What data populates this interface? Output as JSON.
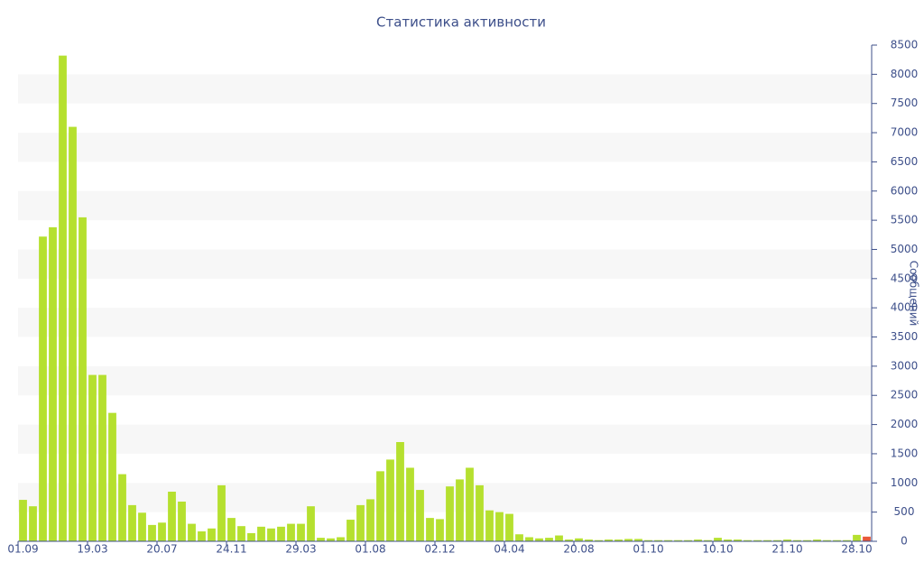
{
  "chart_data": {
    "type": "bar",
    "title": "Статистика активности",
    "y_label": "Сообщений",
    "categories": [
      "01.09",
      null,
      null,
      null,
      null,
      null,
      null,
      "19.03",
      null,
      null,
      null,
      null,
      null,
      null,
      "20.07",
      null,
      null,
      null,
      null,
      null,
      null,
      "24.11",
      null,
      null,
      null,
      null,
      null,
      null,
      "29.03",
      null,
      null,
      null,
      null,
      null,
      null,
      "01.08",
      null,
      null,
      null,
      null,
      null,
      null,
      "02.12",
      null,
      null,
      null,
      null,
      null,
      null,
      "04.04",
      null,
      null,
      null,
      null,
      null,
      null,
      "20.08",
      null,
      null,
      null,
      null,
      null,
      null,
      "01.10",
      null,
      null,
      null,
      null,
      null,
      null,
      "10.10",
      null,
      null,
      null,
      null,
      null,
      null,
      "21.10",
      null,
      null,
      null,
      null,
      null,
      null,
      "28.10",
      null
    ],
    "values": [
      710,
      600,
      5220,
      5380,
      8320,
      7100,
      5550,
      2850,
      2850,
      2200,
      1150,
      620,
      490,
      280,
      320,
      850,
      680,
      300,
      170,
      220,
      960,
      400,
      260,
      140,
      250,
      220,
      250,
      300,
      300,
      600,
      60,
      50,
      70,
      370,
      620,
      720,
      1200,
      1400,
      1700,
      1260,
      880,
      400,
      380,
      940,
      1060,
      1260,
      960,
      530,
      500,
      470,
      120,
      70,
      50,
      60,
      100,
      30,
      50,
      30,
      20,
      30,
      30,
      40,
      40,
      20,
      20,
      20,
      20,
      20,
      30,
      20,
      60,
      30,
      30,
      20,
      20,
      20,
      20,
      30,
      20,
      20,
      30,
      20,
      20,
      20,
      110,
      80
    ],
    "color": "#b5e02f",
    "last_color": "#e8593a",
    "ylim": [
      0,
      8500
    ],
    "yticks": [
      0,
      500,
      1000,
      1500,
      2000,
      2500,
      3000,
      3500,
      4000,
      4500,
      5000,
      5500,
      6000,
      6500,
      7000,
      7500,
      8000,
      8500
    ],
    "y_axis_side": "right",
    "grid": "bands"
  }
}
